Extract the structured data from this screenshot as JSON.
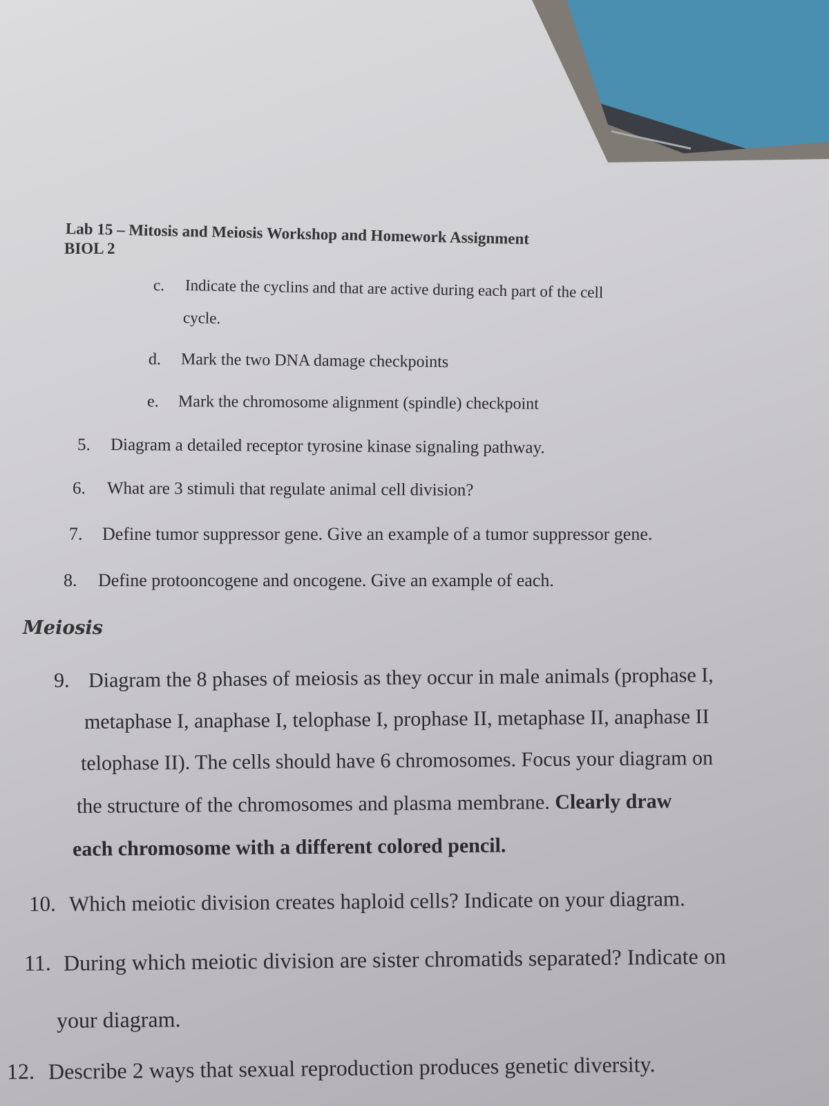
{
  "header": {
    "title": "Lab 15 – Mitosis and Meiosis Workshop and Homework Assignment",
    "course": "BIOL 2"
  },
  "items": [
    {
      "label": "c.",
      "lines": [
        [
          {
            "text": "Indicate the cyclins and that are active during each part of the cell",
            "bold": false
          }
        ],
        [
          {
            "text": "cycle.",
            "bold": false
          }
        ]
      ]
    },
    {
      "label": "d.",
      "lines": [
        [
          {
            "text": "Mark the two DNA damage checkpoints",
            "bold": false
          }
        ]
      ]
    },
    {
      "label": "e.",
      "lines": [
        [
          {
            "text": "Mark the chromosome alignment (spindle) checkpoint",
            "bold": false
          }
        ]
      ]
    },
    {
      "label": "5.",
      "lines": [
        [
          {
            "text": "Diagram a detailed receptor tyrosine kinase signaling pathway.",
            "bold": false
          }
        ]
      ]
    },
    {
      "label": "6.",
      "lines": [
        [
          {
            "text": "What are 3 stimuli that regulate animal cell division?",
            "bold": false
          }
        ]
      ]
    },
    {
      "label": "7.",
      "lines": [
        [
          {
            "text": "Define tumor suppressor gene. Give an example of a tumor suppressor gene.",
            "bold": false
          }
        ]
      ]
    },
    {
      "label": "8.",
      "lines": [
        [
          {
            "text": "Define protooncogene and oncogene. Give an example of each.",
            "bold": false
          }
        ]
      ]
    }
  ],
  "section": "Meiosis",
  "meiosis_items": [
    {
      "label": "9.",
      "lines": [
        [
          {
            "text": "Diagram the 8 phases of meiosis as they occur in male animals (prophase I,",
            "bold": false
          }
        ],
        [
          {
            "text": "metaphase I, anaphase I, telophase I, prophase II, metaphase II, anaphase II",
            "bold": false
          }
        ],
        [
          {
            "text": "telophase II). The cells should have 6 chromosomes. Focus your diagram on",
            "bold": false
          }
        ],
        [
          {
            "text": "the structure of the chromosomes and plasma membrane.",
            "bold": false
          },
          {
            "text": "Clearly draw",
            "bold": true
          }
        ],
        [
          {
            "text": "each chromosome with a different colored pencil.",
            "bold": true
          }
        ]
      ]
    },
    {
      "label": "10.",
      "lines": [
        [
          {
            "text": "Which meiotic division creates haploid cells? Indicate on your diagram.",
            "bold": false
          }
        ]
      ]
    },
    {
      "label": "11.",
      "lines": [
        [
          {
            "text": "During which meiotic division are sister chromatids separated? Indicate on",
            "bold": false
          }
        ],
        [
          {
            "text": "your diagram.",
            "bold": false
          }
        ]
      ]
    },
    {
      "label": "12.",
      "lines": [
        [
          {
            "text": "Describe 2 ways that sexual reproduction produces genetic diversity.",
            "bold": false
          }
        ]
      ]
    }
  ]
}
